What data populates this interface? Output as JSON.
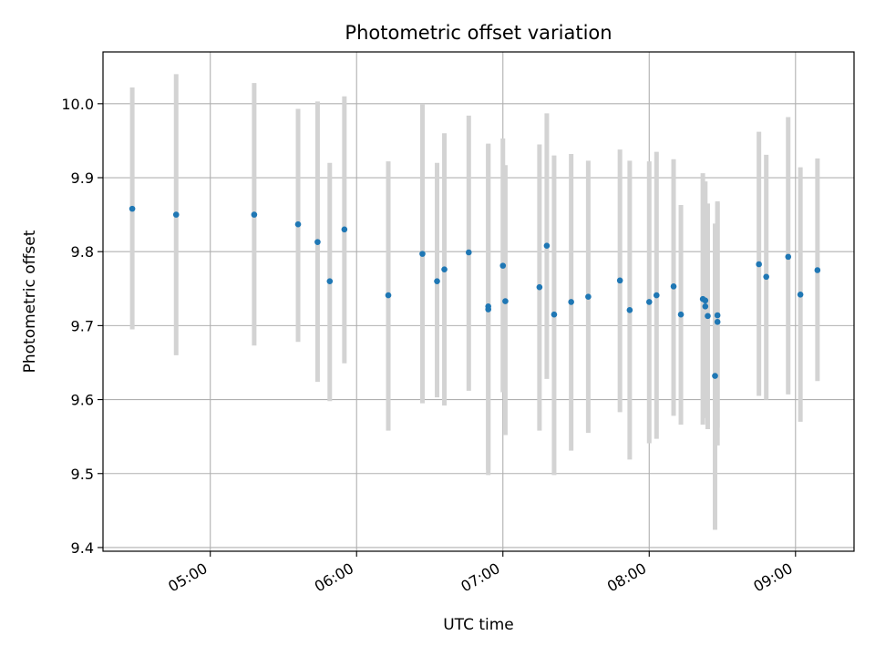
{
  "chart_data": {
    "type": "scatter",
    "title": "Photometric offset variation",
    "xlabel": "UTC time",
    "ylabel": "Photometric offset",
    "x_ticks": [
      "05:00",
      "06:00",
      "07:00",
      "08:00",
      "09:00"
    ],
    "y_ticks": [
      "9.4",
      "9.5",
      "9.6",
      "9.7",
      "9.8",
      "9.9",
      "10.0"
    ],
    "xlim": [
      "04:16",
      "09:24"
    ],
    "ylim": [
      9.395,
      10.07
    ],
    "grid": true,
    "legend": "none",
    "colors": {
      "marker": "#1f77b4",
      "errorbar": "#d3d3d3",
      "grid": "#b0b0b0"
    },
    "points": [
      {
        "t": "04:28",
        "y": 9.858,
        "lo": 9.695,
        "hi": 10.022
      },
      {
        "t": "04:46",
        "y": 9.85,
        "lo": 9.66,
        "hi": 10.04
      },
      {
        "t": "05:18",
        "y": 9.85,
        "lo": 9.673,
        "hi": 10.028
      },
      {
        "t": "05:36",
        "y": 9.837,
        "lo": 9.678,
        "hi": 9.993
      },
      {
        "t": "05:44",
        "y": 9.813,
        "lo": 9.624,
        "hi": 10.003
      },
      {
        "t": "05:49",
        "y": 9.76,
        "lo": 9.598,
        "hi": 9.92
      },
      {
        "t": "05:55",
        "y": 9.83,
        "lo": 9.649,
        "hi": 10.01
      },
      {
        "t": "06:13",
        "y": 9.741,
        "lo": 9.558,
        "hi": 9.922
      },
      {
        "t": "06:27",
        "y": 9.797,
        "lo": 9.595,
        "hi": 10.0
      },
      {
        "t": "06:33",
        "y": 9.76,
        "lo": 9.603,
        "hi": 9.92
      },
      {
        "t": "06:36",
        "y": 9.776,
        "lo": 9.592,
        "hi": 9.96
      },
      {
        "t": "06:46",
        "y": 9.799,
        "lo": 9.612,
        "hi": 9.984
      },
      {
        "t": "06:54",
        "y": 9.726,
        "lo": 9.505,
        "hi": 9.946
      },
      {
        "t": "06:54",
        "y": 9.722,
        "lo": 9.498,
        "hi": 9.945
      },
      {
        "t": "07:00",
        "y": 9.781,
        "lo": 9.61,
        "hi": 9.953
      },
      {
        "t": "07:01",
        "y": 9.733,
        "lo": 9.552,
        "hi": 9.917
      },
      {
        "t": "07:15",
        "y": 9.752,
        "lo": 9.558,
        "hi": 9.945
      },
      {
        "t": "07:18",
        "y": 9.808,
        "lo": 9.628,
        "hi": 9.987
      },
      {
        "t": "07:21",
        "y": 9.715,
        "lo": 9.498,
        "hi": 9.93
      },
      {
        "t": "07:28",
        "y": 9.732,
        "lo": 9.531,
        "hi": 9.932
      },
      {
        "t": "07:35",
        "y": 9.739,
        "lo": 9.555,
        "hi": 9.923
      },
      {
        "t": "07:48",
        "y": 9.761,
        "lo": 9.583,
        "hi": 9.938
      },
      {
        "t": "07:52",
        "y": 9.721,
        "lo": 9.519,
        "hi": 9.923
      },
      {
        "t": "08:00",
        "y": 9.732,
        "lo": 9.541,
        "hi": 9.922
      },
      {
        "t": "08:03",
        "y": 9.741,
        "lo": 9.547,
        "hi": 9.935
      },
      {
        "t": "08:10",
        "y": 9.753,
        "lo": 9.578,
        "hi": 9.925
      },
      {
        "t": "08:13",
        "y": 9.715,
        "lo": 9.566,
        "hi": 9.863
      },
      {
        "t": "08:22",
        "y": 9.736,
        "lo": 9.566,
        "hi": 9.906
      },
      {
        "t": "08:23",
        "y": 9.734,
        "lo": 9.575,
        "hi": 9.895
      },
      {
        "t": "08:23",
        "y": 9.726,
        "lo": 9.59,
        "hi": 9.865
      },
      {
        "t": "08:24",
        "y": 9.713,
        "lo": 9.56,
        "hi": 9.865
      },
      {
        "t": "08:27",
        "y": 9.632,
        "lo": 9.424,
        "hi": 9.838
      },
      {
        "t": "08:28",
        "y": 9.705,
        "lo": 9.538,
        "hi": 9.868
      },
      {
        "t": "08:28",
        "y": 9.714,
        "lo": 9.562,
        "hi": 9.866
      },
      {
        "t": "08:45",
        "y": 9.783,
        "lo": 9.605,
        "hi": 9.962
      },
      {
        "t": "08:48",
        "y": 9.766,
        "lo": 9.6,
        "hi": 9.931
      },
      {
        "t": "08:57",
        "y": 9.793,
        "lo": 9.607,
        "hi": 9.982
      },
      {
        "t": "09:02",
        "y": 9.742,
        "lo": 9.57,
        "hi": 9.914
      },
      {
        "t": "09:09",
        "y": 9.775,
        "lo": 9.625,
        "hi": 9.926
      }
    ]
  }
}
